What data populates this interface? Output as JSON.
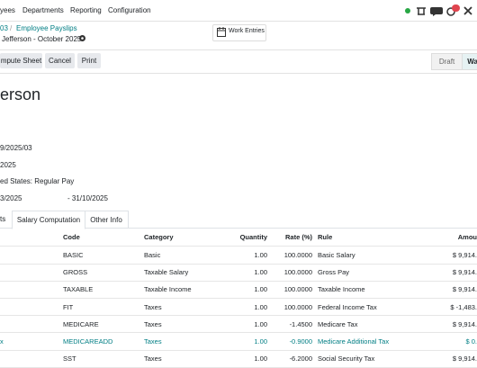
{
  "nav": {
    "items": [
      "yees",
      "Departments",
      "Reporting",
      "Configuration"
    ],
    "badge": "5"
  },
  "breadcrumb": {
    "parent": "03",
    "link": "Employee Payslips",
    "record": "Jefferson - October 2025"
  },
  "work_entries": "Work Entries",
  "buttons": [
    "mpute Sheet",
    "Cancel",
    "Print"
  ],
  "status": [
    "Draft",
    "Wa"
  ],
  "form": {
    "title": "erson",
    "fields": [
      "9/2025/03",
      "2025",
      "ed States: Regular Pay",
      "3/2025",
      "- 31/10/2025"
    ]
  },
  "tabs": [
    "ts",
    "Salary Computation",
    "Other Info"
  ],
  "table": {
    "headers": [
      "Code",
      "Category",
      "Quantity",
      "Rate (%)",
      "Rule",
      "Amou"
    ],
    "rows": [
      {
        "code": "BASIC",
        "category": "Basic",
        "quantity": "1.00",
        "rate": "100.0000",
        "rule": "Basic Salary",
        "amount": "$ 9,914."
      },
      {
        "code": "GROSS",
        "category": "Taxable Salary",
        "quantity": "1.00",
        "rate": "100.0000",
        "rule": "Gross Pay",
        "amount": "$ 9,914."
      },
      {
        "code": "TAXABLE",
        "category": "Taxable Income",
        "quantity": "1.00",
        "rate": "100.0000",
        "rule": "Taxable Income",
        "amount": "$ 9,914."
      },
      {
        "code": "FIT",
        "category": "Taxes",
        "quantity": "1.00",
        "rate": "100.0000",
        "rule": "Federal Income Tax",
        "amount": "$ -1,483."
      },
      {
        "code": "MEDICARE",
        "category": "Taxes",
        "quantity": "1.00",
        "rate": "-1.4500",
        "rule": "Medicare Tax",
        "amount": "$ 9,914."
      },
      {
        "name": "x",
        "code": "MEDICAREADD",
        "category": "Taxes",
        "quantity": "1.00",
        "rate": "-0.9000",
        "rule": "Medicare Additional Tax",
        "amount": "$ 0."
      },
      {
        "code": "SST",
        "category": "Taxes",
        "quantity": "1.00",
        "rate": "-6.2000",
        "rule": "Social Security Tax",
        "amount": "$ 9,914."
      }
    ]
  }
}
